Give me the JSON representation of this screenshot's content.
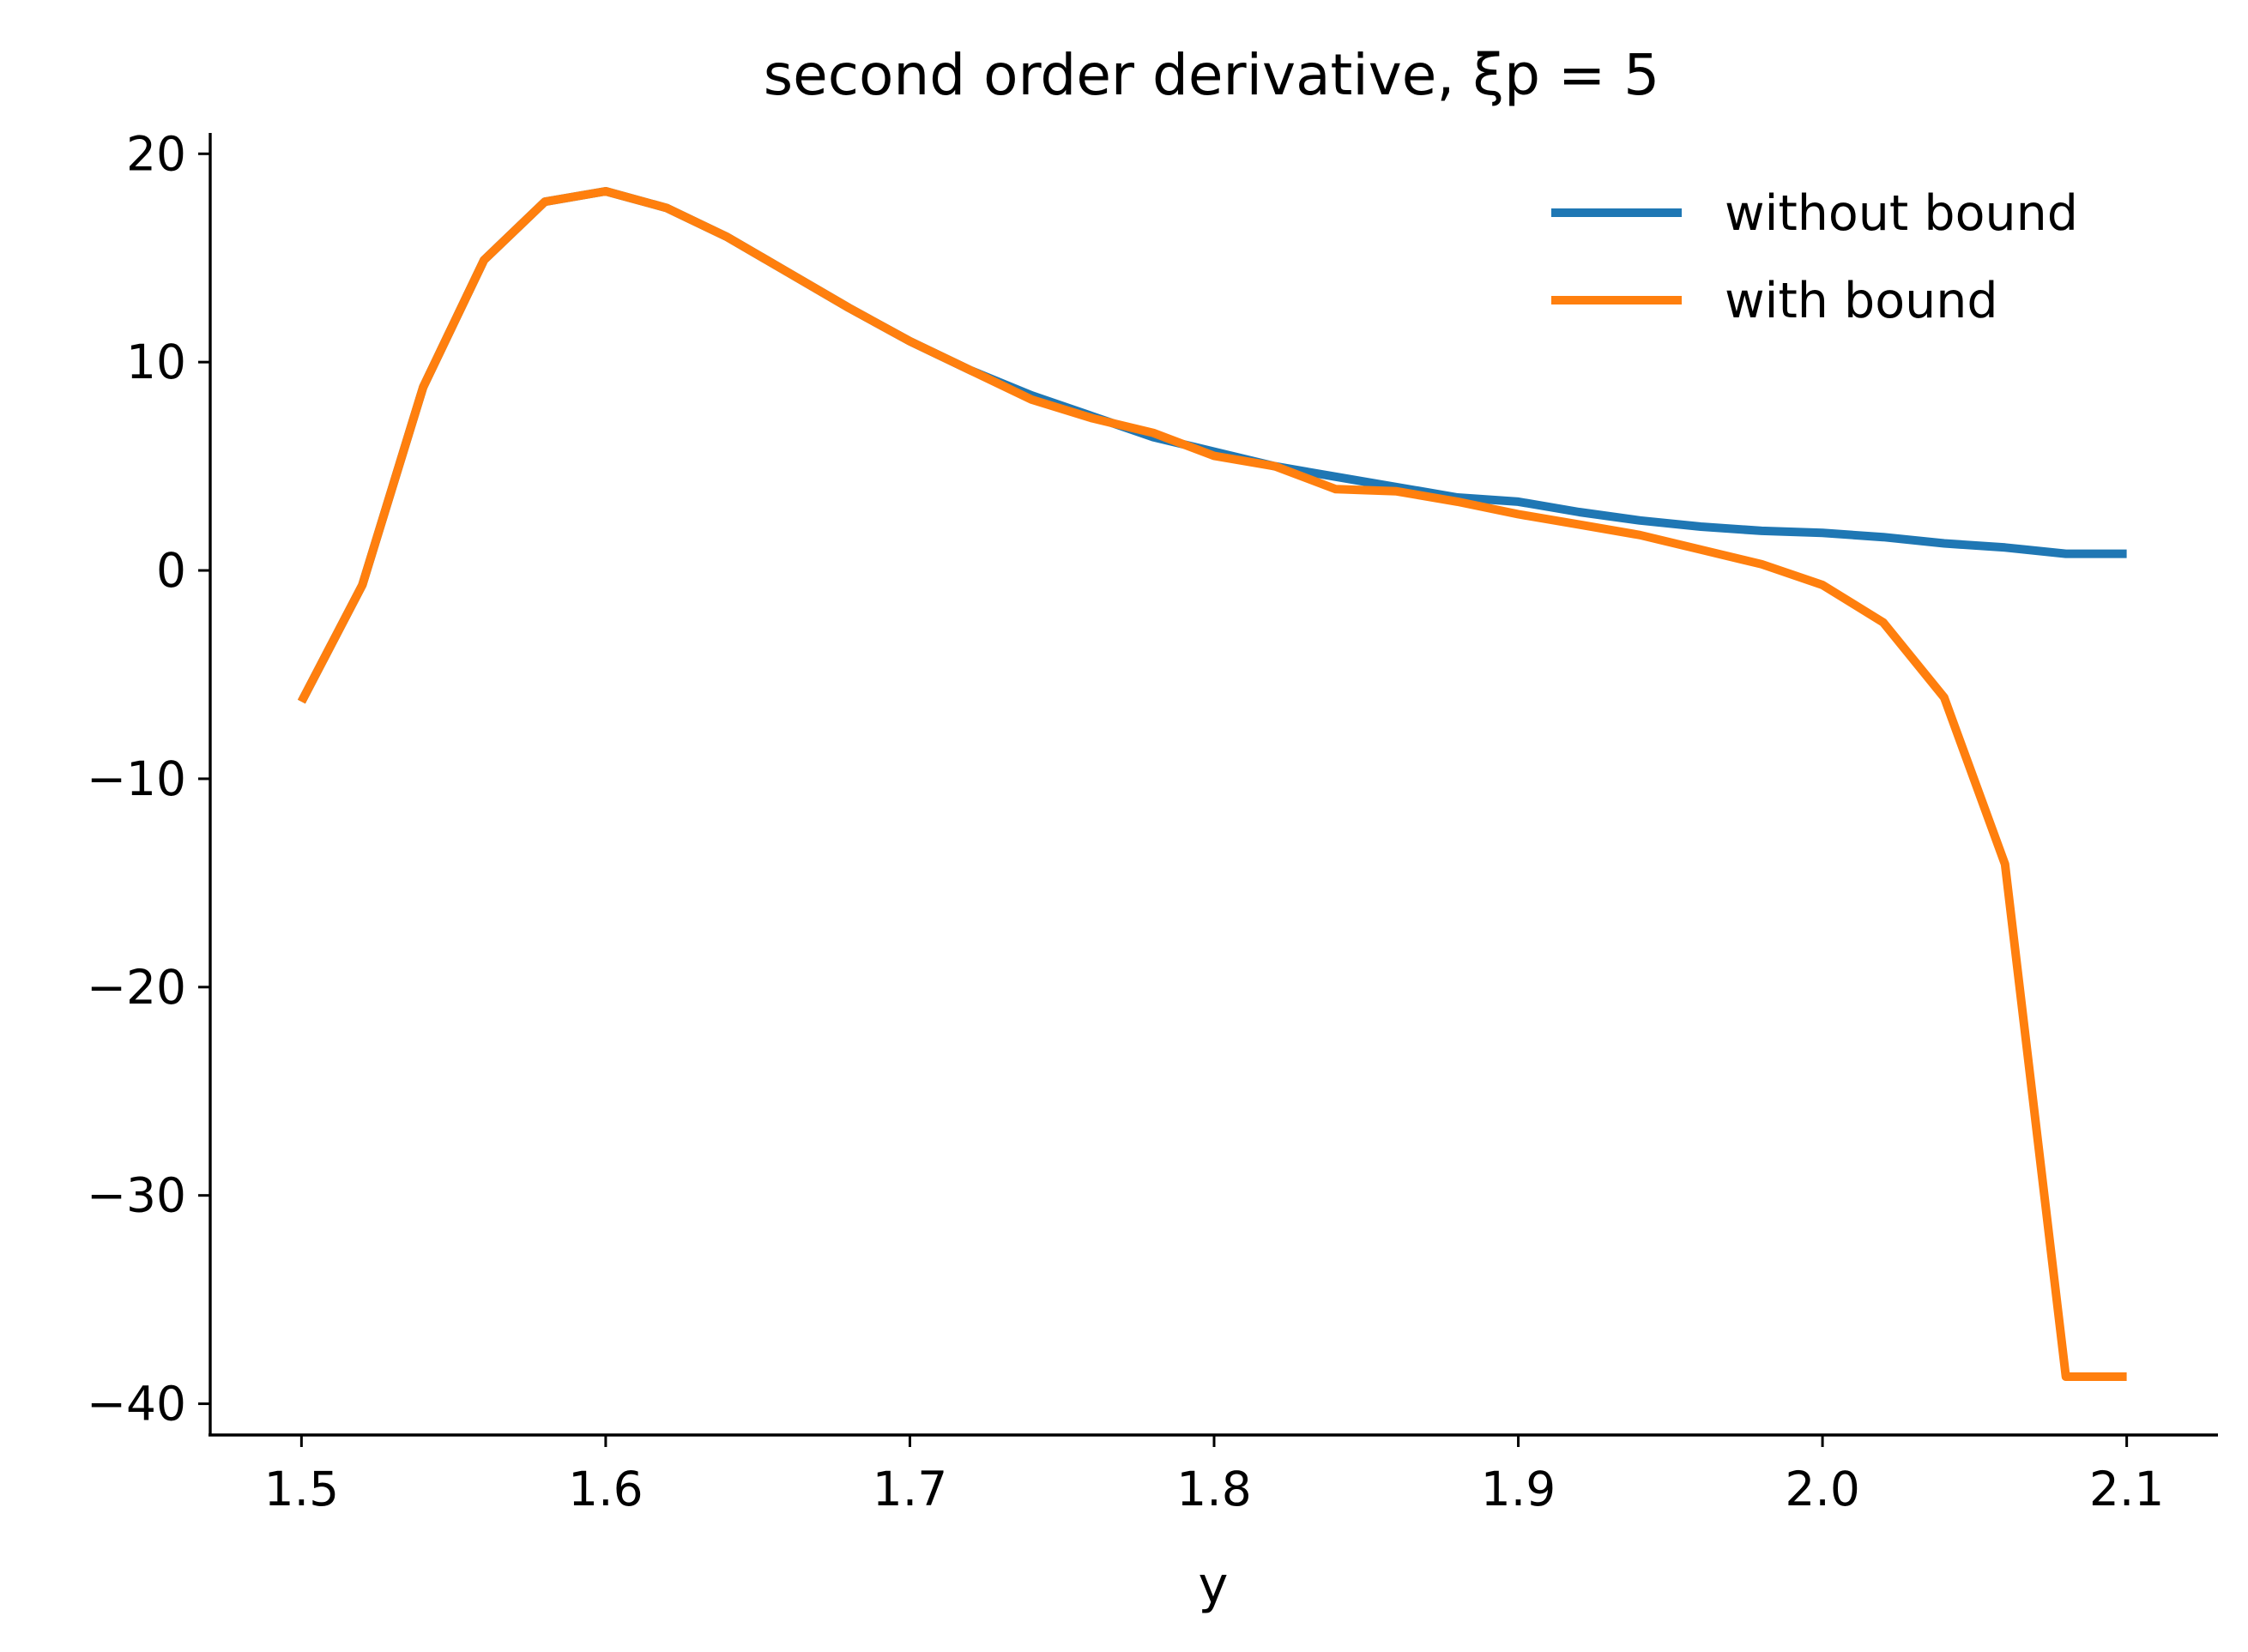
{
  "chart_data": {
    "type": "line",
    "title": "second order derivative, ξp = 5",
    "xlabel": "y",
    "ylabel": "",
    "xlim": [
      1.47,
      2.13
    ],
    "ylim": [
      -41.5,
      21.0
    ],
    "xticks": [
      1.5,
      1.6,
      1.7,
      1.8,
      1.9,
      2.0,
      2.1
    ],
    "xtick_labels": [
      "1.5",
      "1.6",
      "1.7",
      "1.8",
      "1.9",
      "2.0",
      "2.1"
    ],
    "yticks": [
      20,
      10,
      0,
      -10,
      -20,
      -30,
      -40
    ],
    "ytick_labels": [
      "20",
      "10",
      "0",
      "−10",
      "−20",
      "−30",
      "−40"
    ],
    "grid": false,
    "legend_position": "top-right",
    "series": [
      {
        "name": "without bound",
        "color": "#1f77b4",
        "x": [
          1.5,
          1.52,
          1.54,
          1.56,
          1.58,
          1.6,
          1.62,
          1.64,
          1.66,
          1.68,
          1.7,
          1.72,
          1.74,
          1.76,
          1.78,
          1.8,
          1.82,
          1.84,
          1.86,
          1.88,
          1.9,
          1.92,
          1.94,
          1.96,
          1.98,
          2.0,
          2.02,
          2.04,
          2.06,
          2.08,
          2.1
        ],
        "y": [
          -6.3,
          -0.7,
          8.8,
          14.9,
          17.7,
          18.2,
          17.4,
          16.0,
          14.3,
          12.6,
          11.0,
          9.6,
          8.4,
          7.4,
          6.4,
          5.7,
          5.0,
          4.5,
          4.0,
          3.5,
          3.3,
          2.8,
          2.4,
          2.1,
          1.9,
          1.8,
          1.6,
          1.3,
          1.1,
          0.8,
          0.8
        ]
      },
      {
        "name": "with bound",
        "color": "#ff7f0e",
        "x": [
          1.5,
          1.52,
          1.54,
          1.56,
          1.58,
          1.6,
          1.62,
          1.64,
          1.66,
          1.68,
          1.7,
          1.72,
          1.74,
          1.76,
          1.78,
          1.8,
          1.82,
          1.84,
          1.86,
          1.88,
          1.9,
          1.92,
          1.94,
          1.96,
          1.98,
          2.0,
          2.02,
          2.04,
          2.06,
          2.08,
          2.1
        ],
        "y": [
          -6.3,
          -0.7,
          8.8,
          14.9,
          17.7,
          18.2,
          17.4,
          16.0,
          14.3,
          12.6,
          11.0,
          9.6,
          8.2,
          7.3,
          6.6,
          5.5,
          5.0,
          3.9,
          3.8,
          3.3,
          2.7,
          2.2,
          1.7,
          1.0,
          0.3,
          -0.7,
          -2.5,
          -6.1,
          -14.1,
          -38.7,
          -38.7
        ]
      }
    ]
  }
}
